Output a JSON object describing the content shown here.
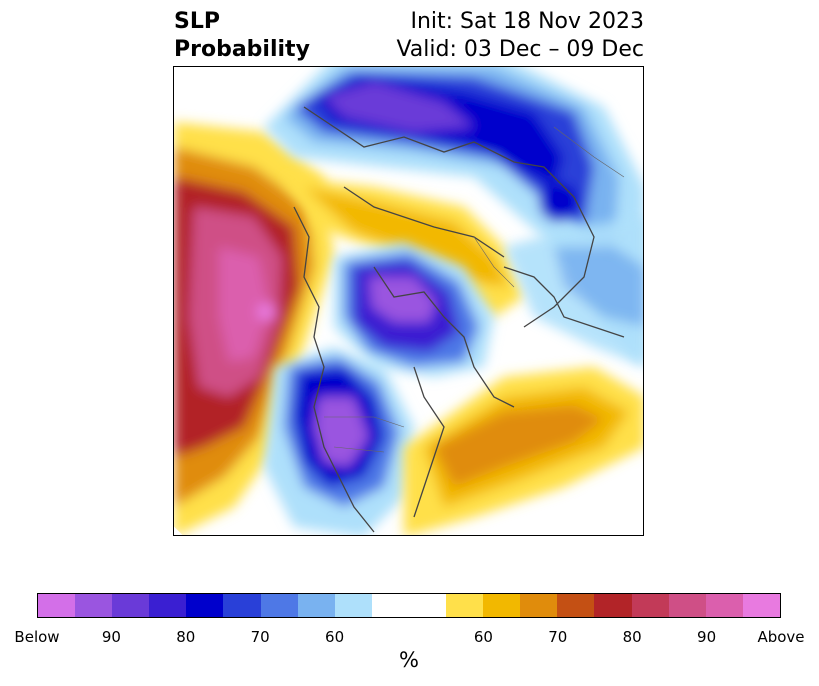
{
  "title": {
    "left_line1": "SLP",
    "left_line2": "Probability",
    "right_line1": "Init: Sat 18 Nov 2023",
    "right_line2": "Valid: 03 Dec – 09 Dec"
  },
  "colorbar": {
    "colors": [
      "#d36fe8",
      "#9a55e0",
      "#6a3ad8",
      "#3a1fd2",
      "#0000cc",
      "#2940d8",
      "#4e78e6",
      "#79b2f0",
      "#aee0fb",
      "#ffffff",
      "#ffe04a",
      "#f2b800",
      "#e08c0c",
      "#c45014",
      "#b22428",
      "#c23a58",
      "#cf4f86",
      "#db5fad",
      "#e87ae0"
    ],
    "ticks": [
      "Below",
      "90",
      "80",
      "70",
      "60",
      "60",
      "70",
      "80",
      "90",
      "Above"
    ],
    "unit_label": "%"
  },
  "map": {
    "projection": "north-polar-stereographic",
    "overlay": "coastlines-and-borders",
    "color_meaning": "blue = below-normal SLP probability, orange/red = above-normal SLP probability"
  }
}
